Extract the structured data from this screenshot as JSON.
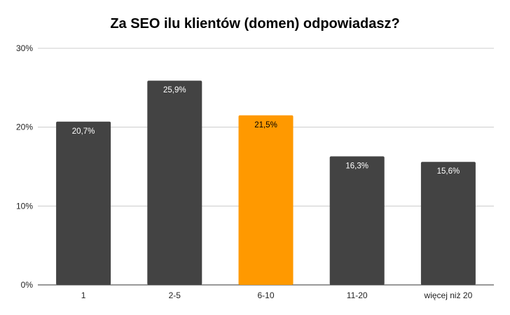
{
  "chart_data": {
    "type": "bar",
    "title": "Za SEO ilu klientów (domen) odpowiadasz?",
    "categories": [
      "1",
      "2-5",
      "6-10",
      "11-20",
      "więcej niż 20"
    ],
    "values": [
      20.7,
      25.9,
      21.5,
      16.3,
      15.6
    ],
    "value_labels": [
      "20,7%",
      "25,9%",
      "21,5%",
      "16,3%",
      "15,6%"
    ],
    "highlight_index": 2,
    "ylim": [
      0,
      30
    ],
    "y_ticks": [
      0,
      10,
      20,
      30
    ],
    "y_tick_labels": [
      "0%",
      "10%",
      "20%",
      "30%"
    ],
    "grid": true,
    "legend": "none",
    "colors": {
      "bar": "#434343",
      "highlight": "#ff9900",
      "label_on_dark": "#ffffff",
      "label_on_highlight": "#000000",
      "grid": "#cccccc",
      "axis": "#333333"
    }
  }
}
